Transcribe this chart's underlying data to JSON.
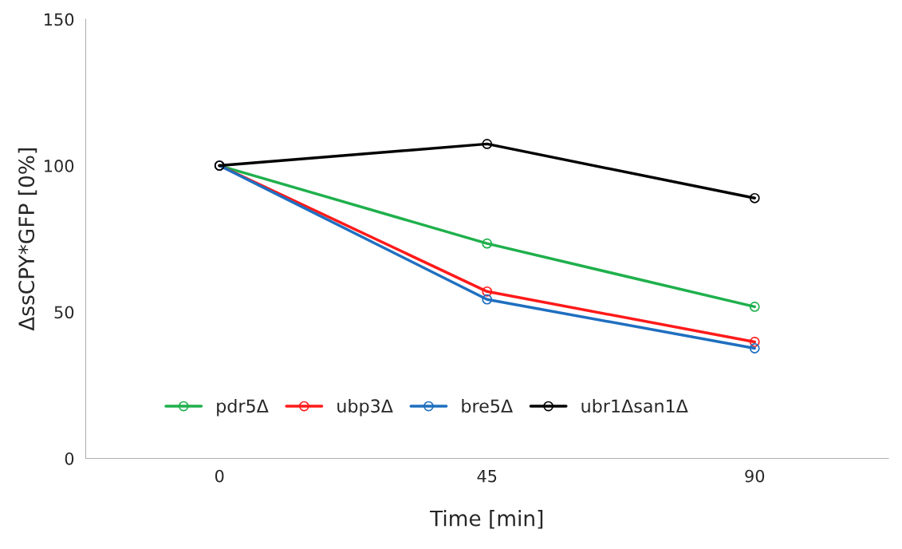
{
  "chart_data": {
    "type": "line",
    "xlabel": "Time [min]",
    "ylabel": "ΔssCPY*GFP [0%]",
    "x": [
      0,
      45,
      90
    ],
    "xlim": [
      -22.5,
      112.5
    ],
    "xticks": [
      0,
      45,
      90
    ],
    "series": [
      {
        "name": "pdr5Δ",
        "color": "#1fb04c",
        "values": [
          100,
          73.4,
          51.8
        ]
      },
      {
        "name": "ubp3Δ",
        "color": "#ff1a1a",
        "values": [
          100,
          57.0,
          39.8
        ]
      },
      {
        "name": "bre5Δ",
        "color": "#1f6fc0",
        "values": [
          100,
          54.3,
          37.6
        ]
      },
      {
        "name": "ubr1Δsan1Δ",
        "color": "#000000",
        "values": [
          100,
          107.4,
          88.9
        ]
      }
    ],
    "ylim": [
      0,
      150
    ],
    "yticks": [
      0,
      50,
      100,
      150
    ],
    "grid": false,
    "legend": "bottom left",
    "marker": "circle",
    "line_style": "solid"
  }
}
